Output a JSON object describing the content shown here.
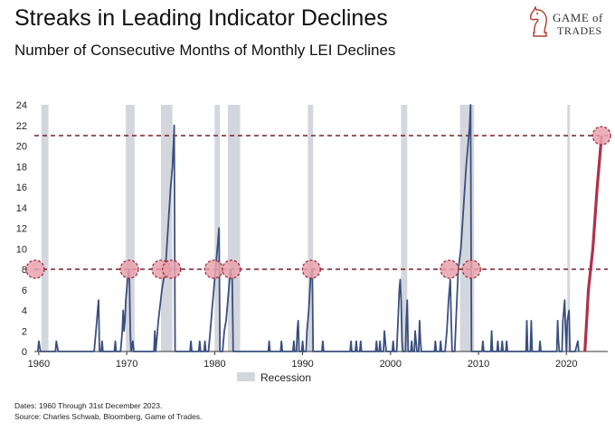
{
  "header": {
    "title": "Streaks in Leading Indicator Declines",
    "subtitle": "Number of Consecutive Months of Monthly LEI Declines"
  },
  "logo": {
    "line1": "GAME of",
    "line2": "TRADES",
    "icon": "knight-chess-icon"
  },
  "footnotes": {
    "dates": "Dates: 1960 Through 31st December 2023.",
    "source": "Source: Charles Schwab, Bloomberg, Game of Trades."
  },
  "colors": {
    "line": "#3a4f7e",
    "recent_line": "#b0304a",
    "recession": "#d3d6dc",
    "reference": "#7a1f2b",
    "marker_fill": "#e8a2ad",
    "marker_stroke": "#9b2336"
  },
  "chart_data": {
    "type": "line",
    "title": "",
    "xlabel": "",
    "ylabel": "",
    "xlim": [
      1959.5,
      2024.7
    ],
    "ylim": [
      0,
      24
    ],
    "x_ticks": [
      1960,
      1970,
      1980,
      1990,
      2000,
      2010,
      2020
    ],
    "y_ticks": [
      0,
      2,
      4,
      6,
      8,
      10,
      12,
      14,
      16,
      18,
      20,
      22,
      24
    ],
    "grid": false,
    "legend": {
      "position": "bottom-center",
      "entries": [
        "Recession"
      ]
    },
    "recessions": [
      [
        1960.3,
        1961.1
      ],
      [
        1969.9,
        1970.9
      ],
      [
        1973.9,
        1975.2
      ],
      [
        1980.0,
        1980.6
      ],
      [
        1981.5,
        1982.9
      ],
      [
        1990.6,
        1991.2
      ],
      [
        2001.2,
        2001.9
      ],
      [
        2007.9,
        2009.5
      ],
      [
        2020.1,
        2020.4
      ]
    ],
    "reference_lines": [
      8,
      21
    ],
    "series": [
      {
        "points": [
          [
            1959.9,
            0
          ],
          [
            1960.0,
            1
          ],
          [
            1960.2,
            0
          ],
          [
            1961.9,
            0
          ],
          [
            1962.0,
            1
          ],
          [
            1962.2,
            0
          ],
          [
            1966.3,
            0
          ],
          [
            1966.5,
            2
          ],
          [
            1966.7,
            4
          ],
          [
            1966.8,
            5
          ],
          [
            1966.9,
            0
          ],
          [
            1967.1,
            0
          ],
          [
            1967.2,
            1
          ],
          [
            1967.3,
            0
          ],
          [
            1968.6,
            0
          ],
          [
            1968.7,
            1
          ],
          [
            1968.8,
            0
          ],
          [
            1969.3,
            0
          ],
          [
            1969.4,
            1
          ],
          [
            1969.5,
            2
          ],
          [
            1969.6,
            4
          ],
          [
            1969.7,
            2
          ],
          [
            1969.8,
            3
          ],
          [
            1969.9,
            5
          ],
          [
            1970.1,
            7
          ],
          [
            1970.3,
            8
          ],
          [
            1970.4,
            2
          ],
          [
            1970.5,
            0
          ],
          [
            1970.7,
            1
          ],
          [
            1970.8,
            0
          ],
          [
            1973.1,
            0
          ],
          [
            1973.2,
            2
          ],
          [
            1973.3,
            0
          ],
          [
            1973.6,
            3
          ],
          [
            1974.0,
            6
          ],
          [
            1974.4,
            8
          ],
          [
            1974.7,
            12
          ],
          [
            1975.0,
            16
          ],
          [
            1975.2,
            18
          ],
          [
            1975.4,
            22
          ],
          [
            1975.5,
            0
          ],
          [
            1977.2,
            0
          ],
          [
            1977.3,
            1
          ],
          [
            1977.4,
            0
          ],
          [
            1978.2,
            0
          ],
          [
            1978.3,
            1
          ],
          [
            1978.4,
            0
          ],
          [
            1978.8,
            0
          ],
          [
            1978.9,
            1
          ],
          [
            1979.0,
            0
          ],
          [
            1979.3,
            0
          ],
          [
            1979.5,
            2
          ],
          [
            1979.7,
            4
          ],
          [
            1979.9,
            6
          ],
          [
            1980.1,
            8
          ],
          [
            1980.3,
            10
          ],
          [
            1980.5,
            12
          ],
          [
            1980.6,
            0
          ],
          [
            1980.9,
            0
          ],
          [
            1981.1,
            2
          ],
          [
            1981.3,
            3
          ],
          [
            1981.4,
            4
          ],
          [
            1981.6,
            6
          ],
          [
            1981.8,
            8
          ],
          [
            1982.0,
            7
          ],
          [
            1982.1,
            0
          ],
          [
            1986.1,
            0
          ],
          [
            1986.2,
            1
          ],
          [
            1986.3,
            0
          ],
          [
            1987.5,
            0
          ],
          [
            1987.6,
            1
          ],
          [
            1987.7,
            0
          ],
          [
            1988.9,
            0
          ],
          [
            1989.0,
            1
          ],
          [
            1989.1,
            0
          ],
          [
            1989.3,
            0
          ],
          [
            1989.4,
            2
          ],
          [
            1989.5,
            3
          ],
          [
            1989.6,
            0
          ],
          [
            1989.9,
            0
          ],
          [
            1990.0,
            1
          ],
          [
            1990.1,
            0
          ],
          [
            1990.4,
            0
          ],
          [
            1990.5,
            2
          ],
          [
            1990.7,
            4
          ],
          [
            1990.9,
            7
          ],
          [
            1991.1,
            8
          ],
          [
            1991.2,
            0
          ],
          [
            1992.2,
            0
          ],
          [
            1992.3,
            1
          ],
          [
            1992.4,
            0
          ],
          [
            1995.4,
            0
          ],
          [
            1995.5,
            1
          ],
          [
            1995.6,
            0
          ],
          [
            1996.0,
            0
          ],
          [
            1996.1,
            1
          ],
          [
            1996.2,
            0
          ],
          [
            1996.5,
            0
          ],
          [
            1996.6,
            1
          ],
          [
            1996.7,
            0
          ],
          [
            1998.3,
            0
          ],
          [
            1998.4,
            1
          ],
          [
            1998.5,
            0
          ],
          [
            1998.7,
            0
          ],
          [
            1998.8,
            1
          ],
          [
            1998.9,
            0
          ],
          [
            1999.2,
            0
          ],
          [
            1999.3,
            2
          ],
          [
            1999.4,
            1
          ],
          [
            1999.5,
            0
          ],
          [
            2000.2,
            0
          ],
          [
            2000.3,
            1
          ],
          [
            2000.4,
            0
          ],
          [
            2000.7,
            0
          ],
          [
            2000.8,
            2
          ],
          [
            2000.9,
            4
          ],
          [
            2001.0,
            6
          ],
          [
            2001.1,
            7
          ],
          [
            2001.2,
            5
          ],
          [
            2001.3,
            1
          ],
          [
            2001.4,
            0
          ],
          [
            2001.7,
            0
          ],
          [
            2001.8,
            3
          ],
          [
            2001.9,
            5
          ],
          [
            2002.0,
            0
          ],
          [
            2002.3,
            0
          ],
          [
            2002.4,
            1
          ],
          [
            2002.5,
            0
          ],
          [
            2002.7,
            0
          ],
          [
            2002.8,
            2
          ],
          [
            2002.9,
            1
          ],
          [
            2003.0,
            0
          ],
          [
            2003.2,
            0
          ],
          [
            2003.3,
            3
          ],
          [
            2003.4,
            1
          ],
          [
            2003.5,
            0
          ],
          [
            2005.0,
            0
          ],
          [
            2005.1,
            1
          ],
          [
            2005.2,
            0
          ],
          [
            2005.6,
            0
          ],
          [
            2005.7,
            1
          ],
          [
            2005.8,
            0
          ],
          [
            2006.2,
            0
          ],
          [
            2006.4,
            2
          ],
          [
            2006.6,
            5
          ],
          [
            2006.8,
            7
          ],
          [
            2006.9,
            3
          ],
          [
            2007.0,
            0
          ],
          [
            2007.3,
            0
          ],
          [
            2007.5,
            4
          ],
          [
            2007.7,
            8
          ],
          [
            2008.0,
            10
          ],
          [
            2008.3,
            14
          ],
          [
            2008.6,
            18
          ],
          [
            2008.8,
            20
          ],
          [
            2009.0,
            22
          ],
          [
            2009.1,
            24
          ],
          [
            2009.2,
            0
          ],
          [
            2010.4,
            0
          ],
          [
            2010.5,
            1
          ],
          [
            2010.6,
            0
          ],
          [
            2011.4,
            0
          ],
          [
            2011.5,
            2
          ],
          [
            2011.6,
            0
          ],
          [
            2012.1,
            0
          ],
          [
            2012.2,
            1
          ],
          [
            2012.3,
            0
          ],
          [
            2012.6,
            0
          ],
          [
            2012.7,
            1
          ],
          [
            2012.8,
            0
          ],
          [
            2013.1,
            0
          ],
          [
            2013.2,
            1
          ],
          [
            2013.3,
            0
          ],
          [
            2015.4,
            0
          ],
          [
            2015.5,
            3
          ],
          [
            2015.6,
            0
          ],
          [
            2015.9,
            0
          ],
          [
            2016.0,
            3
          ],
          [
            2016.1,
            0
          ],
          [
            2016.9,
            0
          ],
          [
            2017.0,
            1
          ],
          [
            2017.1,
            0
          ],
          [
            2018.9,
            0
          ],
          [
            2019.0,
            3
          ],
          [
            2019.1,
            1
          ],
          [
            2019.2,
            0
          ],
          [
            2019.5,
            0
          ],
          [
            2019.6,
            3
          ],
          [
            2019.7,
            4
          ],
          [
            2019.8,
            5
          ],
          [
            2019.9,
            2
          ],
          [
            2020.0,
            0
          ],
          [
            2020.1,
            3
          ],
          [
            2020.3,
            4
          ],
          [
            2020.4,
            0
          ],
          [
            2021.0,
            0
          ],
          [
            2021.3,
            1
          ],
          [
            2021.4,
            0
          ]
        ]
      },
      {
        "points": [
          [
            2022.1,
            0
          ],
          [
            2022.5,
            6
          ],
          [
            2023.0,
            10
          ],
          [
            2023.5,
            16
          ],
          [
            2024.0,
            21
          ]
        ]
      }
    ],
    "highlighted_points": [
      [
        1959.6,
        8
      ],
      [
        1970.3,
        8
      ],
      [
        1973.9,
        8
      ],
      [
        1975.1,
        8
      ],
      [
        1979.9,
        8
      ],
      [
        1981.9,
        8
      ],
      [
        1991.0,
        8
      ],
      [
        2006.7,
        8
      ],
      [
        2009.2,
        8
      ],
      [
        2024.0,
        21
      ]
    ]
  }
}
